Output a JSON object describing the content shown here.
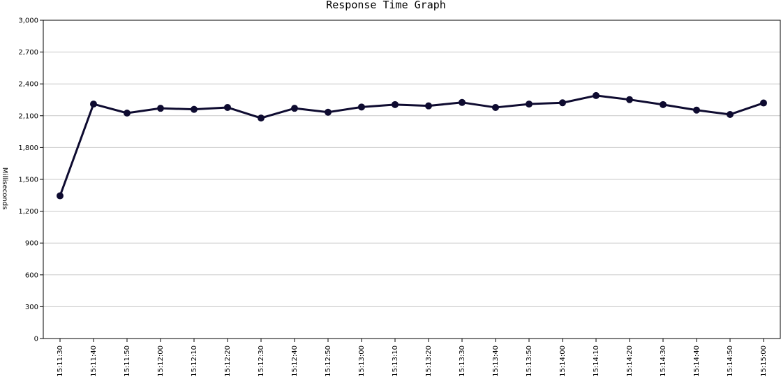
{
  "chart_data": {
    "type": "line",
    "title": "Response Time Graph",
    "xlabel": "",
    "ylabel": "Milliseconds",
    "ylim": [
      0,
      3000
    ],
    "yticks": [
      0,
      300,
      600,
      900,
      1200,
      1500,
      1800,
      2100,
      2400,
      2700,
      3000
    ],
    "ytick_labels": [
      "0",
      "300",
      "600",
      "900",
      "1,200",
      "1,500",
      "1,800",
      "2,100",
      "2,400",
      "2,700",
      "3,000"
    ],
    "grid": true,
    "legend": "none",
    "categories": [
      "15:11:30",
      "15:11:40",
      "15:11:50",
      "15:12:00",
      "15:12:10",
      "15:12:20",
      "15:12:30",
      "15:12:40",
      "15:12:50",
      "15:13:00",
      "15:13:10",
      "15:13:20",
      "15:13:30",
      "15:13:40",
      "15:13:50",
      "15:14:00",
      "15:14:10",
      "15:14:20",
      "15:14:30",
      "15:14:40",
      "15:14:50",
      "15:15:00"
    ],
    "series": [
      {
        "color": "#0e0b30",
        "values": [
          1345,
          2210,
          2125,
          2170,
          2160,
          2178,
          2078,
          2170,
          2133,
          2182,
          2205,
          2193,
          2225,
          2178,
          2210,
          2222,
          2290,
          2252,
          2205,
          2153,
          2112,
          2220
        ]
      }
    ]
  }
}
